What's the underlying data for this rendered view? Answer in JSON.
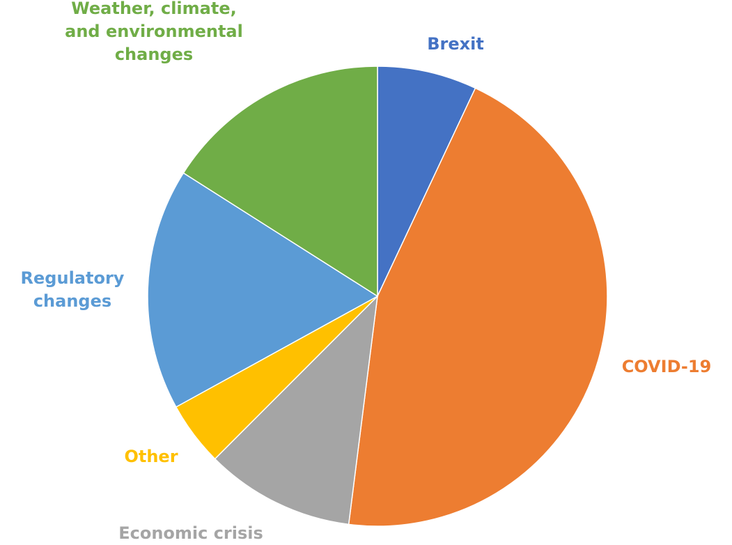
{
  "chart_data": {
    "type": "pie",
    "categories": [
      "Brexit",
      "COVID-19",
      "Economic crisis",
      "Other",
      "Regulatory changes",
      "Weather, climate, and environmental changes"
    ],
    "values": [
      7,
      45,
      10.5,
      4.5,
      17,
      16
    ],
    "label_lines": [
      [
        "Brexit"
      ],
      [
        "COVID-19"
      ],
      [
        "Economic crisis"
      ],
      [
        "Other"
      ],
      [
        "Regulatory",
        "changes"
      ],
      [
        "Weather, climate,",
        "and environmental",
        "changes"
      ]
    ],
    "colors": [
      "#4472C4",
      "#ED7D31",
      "#A5A5A5",
      "#FFC000",
      "#5B9BD5",
      "#70AD47"
    ],
    "start_angle": "top (12 o'clock)",
    "direction": "clockwise",
    "legend": "none"
  }
}
